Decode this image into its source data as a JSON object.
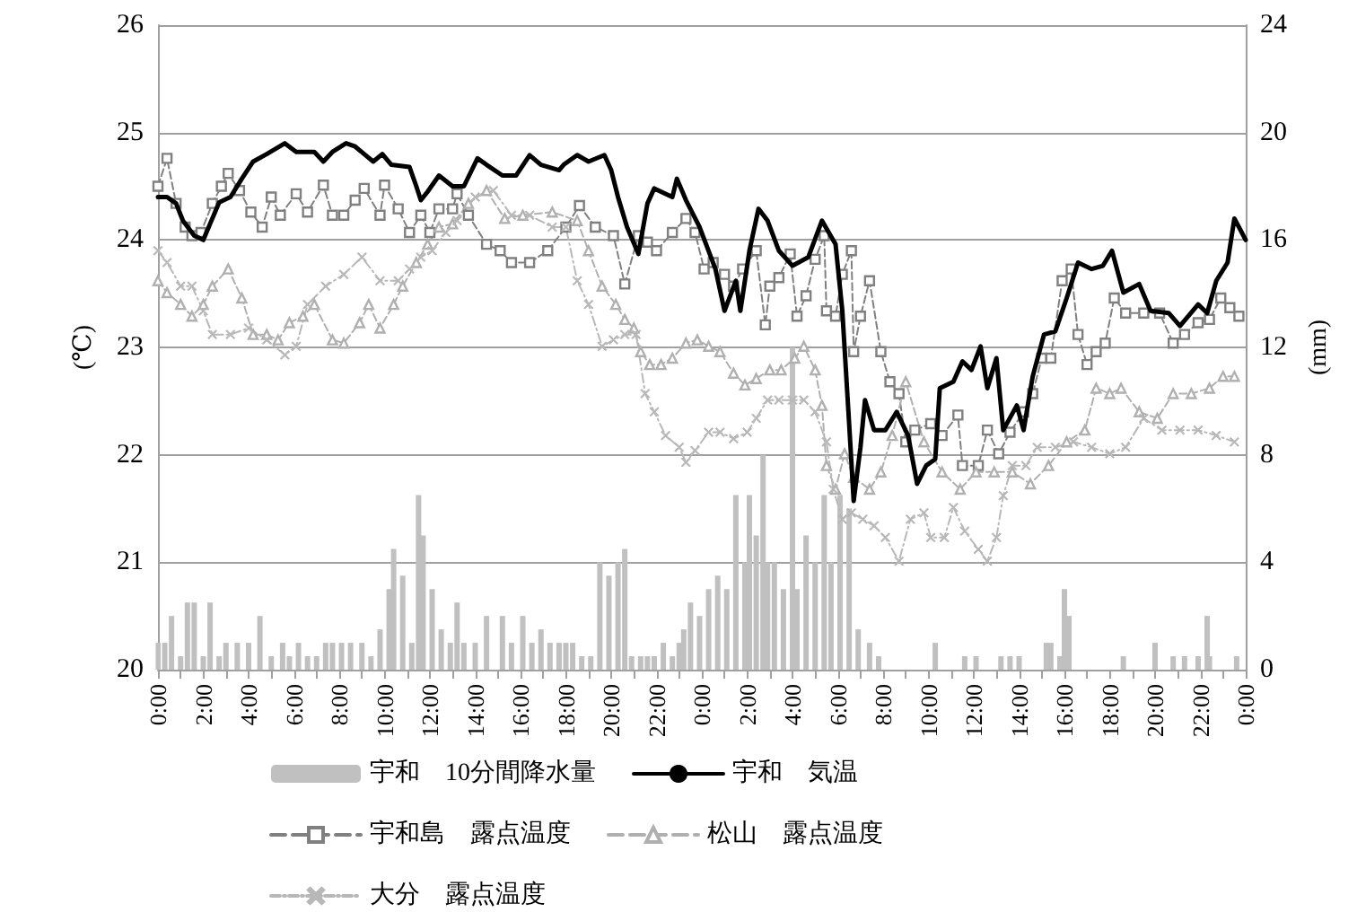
{
  "chart_data": {
    "type": "line",
    "ylabel": "(℃)",
    "y2label": "(mm)",
    "xlim": [
      "2000-01-01T00:00",
      "2000-01-03T00:00"
    ],
    "xticks": [
      {
        "value": "2000-01-01T00:00",
        "label": "0:00"
      },
      {
        "value": "2000-01-01T01:00",
        "label": null
      },
      {
        "value": "2000-01-01T02:00",
        "label": "2:00"
      },
      {
        "value": "2000-01-01T03:00",
        "label": null
      },
      {
        "value": "2000-01-01T04:00",
        "label": "4:00"
      },
      {
        "value": "2000-01-01T05:00",
        "label": null
      },
      {
        "value": "2000-01-01T06:00",
        "label": "6:00"
      },
      {
        "value": "2000-01-01T07:00",
        "label": null
      },
      {
        "value": "2000-01-01T08:00",
        "label": "8:00"
      },
      {
        "value": "2000-01-01T09:00",
        "label": null
      },
      {
        "value": "2000-01-01T10:00",
        "label": "10:00"
      },
      {
        "value": "2000-01-01T11:00",
        "label": null
      },
      {
        "value": "2000-01-01T12:00",
        "label": "12:00"
      },
      {
        "value": "2000-01-01T13:00",
        "label": null
      },
      {
        "value": "2000-01-01T14:00",
        "label": "14:00"
      },
      {
        "value": "2000-01-01T15:00",
        "label": null
      },
      {
        "value": "2000-01-01T16:00",
        "label": "16:00"
      },
      {
        "value": "2000-01-01T17:00",
        "label": null
      },
      {
        "value": "2000-01-01T18:00",
        "label": "18:00"
      },
      {
        "value": "2000-01-01T19:00",
        "label": null
      },
      {
        "value": "2000-01-01T20:00",
        "label": "20:00"
      },
      {
        "value": "2000-01-01T21:00",
        "label": null
      },
      {
        "value": "2000-01-01T22:00",
        "label": "22:00"
      },
      {
        "value": "2000-01-01T23:00",
        "label": null
      },
      {
        "value": "2000-01-02T00:00",
        "label": "0:00"
      },
      {
        "value": "2000-01-02T01:00",
        "label": null
      },
      {
        "value": "2000-01-02T02:00",
        "label": "2:00"
      },
      {
        "value": "2000-01-02T03:00",
        "label": null
      },
      {
        "value": "2000-01-02T04:00",
        "label": "4:00"
      },
      {
        "value": "2000-01-02T05:00",
        "label": null
      },
      {
        "value": "2000-01-02T06:00",
        "label": "6:00"
      },
      {
        "value": "2000-01-02T07:00",
        "label": null
      },
      {
        "value": "2000-01-02T08:00",
        "label": "8:00"
      },
      {
        "value": "2000-01-02T09:00",
        "label": null
      },
      {
        "value": "2000-01-02T10:00",
        "label": "10:00"
      },
      {
        "value": "2000-01-02T11:00",
        "label": null
      },
      {
        "value": "2000-01-02T12:00",
        "label": "12:00"
      },
      {
        "value": "2000-01-02T13:00",
        "label": null
      },
      {
        "value": "2000-01-02T14:00",
        "label": "14:00"
      },
      {
        "value": "2000-01-02T15:00",
        "label": null
      },
      {
        "value": "2000-01-02T16:00",
        "label": "16:00"
      },
      {
        "value": "2000-01-02T17:00",
        "label": null
      },
      {
        "value": "2000-01-02T18:00",
        "label": "18:00"
      },
      {
        "value": "2000-01-02T19:00",
        "label": null
      },
      {
        "value": "2000-01-02T20:00",
        "label": "20:00"
      },
      {
        "value": "2000-01-02T21:00",
        "label": null
      },
      {
        "value": "2000-01-02T22:00",
        "label": "22:00"
      },
      {
        "value": "2000-01-02T23:00",
        "label": null
      },
      {
        "value": "2000-01-03T00:00",
        "label": "0:00"
      }
    ],
    "ylim": [
      20,
      26
    ],
    "yticks": [
      20,
      21,
      22,
      23,
      24,
      25,
      26
    ],
    "y2lim": [
      0,
      24
    ],
    "y2ticks": [
      0,
      4,
      8,
      12,
      16,
      20,
      24
    ],
    "grid": "y",
    "legend": "bottom",
    "series": [
      {
        "name": "宇和　10分間降水量",
        "type": "bar",
        "axis": "y2",
        "color": "#c0c0c0",
        "x": [
          "2000-01-01T00:00",
          "2000-01-01T00:18",
          "2000-01-01T00:36",
          "2000-01-01T01:00",
          "2000-01-01T01:18",
          "2000-01-01T01:36",
          "2000-01-01T02:00",
          "2000-01-01T02:18",
          "2000-01-01T02:42",
          "2000-01-01T03:00",
          "2000-01-01T03:30",
          "2000-01-01T04:00",
          "2000-01-01T04:30",
          "2000-01-01T05:00",
          "2000-01-01T05:30",
          "2000-01-01T05:48",
          "2000-01-01T06:12",
          "2000-01-01T06:36",
          "2000-01-01T07:00",
          "2000-01-01T07:24",
          "2000-01-01T07:42",
          "2000-01-01T08:06",
          "2000-01-01T08:30",
          "2000-01-01T09:00",
          "2000-01-01T09:24",
          "2000-01-01T09:48",
          "2000-01-01T10:12",
          "2000-01-01T10:24",
          "2000-01-01T10:48",
          "2000-01-01T11:12",
          "2000-01-01T11:30",
          "2000-01-01T11:42",
          "2000-01-01T12:06",
          "2000-01-01T12:30",
          "2000-01-01T12:54",
          "2000-01-01T13:12",
          "2000-01-01T13:30",
          "2000-01-01T14:00",
          "2000-01-01T14:30",
          "2000-01-01T15:12",
          "2000-01-01T15:36",
          "2000-01-01T16:06",
          "2000-01-01T16:30",
          "2000-01-01T16:54",
          "2000-01-01T17:18",
          "2000-01-01T17:42",
          "2000-01-01T18:00",
          "2000-01-01T18:18",
          "2000-01-01T18:42",
          "2000-01-01T19:06",
          "2000-01-01T19:30",
          "2000-01-01T19:54",
          "2000-01-01T20:18",
          "2000-01-01T20:36",
          "2000-01-01T20:54",
          "2000-01-01T21:18",
          "2000-01-01T21:36",
          "2000-01-01T21:54",
          "2000-01-01T22:18",
          "2000-01-01T22:42",
          "2000-01-01T23:00",
          "2000-01-01T23:12",
          "2000-01-01T23:30",
          "2000-01-01T23:54",
          "2000-01-02T00:18",
          "2000-01-02T00:42",
          "2000-01-02T01:06",
          "2000-01-02T01:30",
          "2000-01-02T01:54",
          "2000-01-02T02:06",
          "2000-01-02T02:24",
          "2000-01-02T02:42",
          "2000-01-02T02:54",
          "2000-01-02T03:12",
          "2000-01-02T03:36",
          "2000-01-02T04:00",
          "2000-01-02T04:12",
          "2000-01-02T04:36",
          "2000-01-02T05:00",
          "2000-01-02T05:24",
          "2000-01-02T05:42",
          "2000-01-02T06:06",
          "2000-01-02T06:30",
          "2000-01-02T06:54",
          "2000-01-02T07:24",
          "2000-01-02T07:48",
          "2000-01-02T10:18",
          "2000-01-02T11:36",
          "2000-01-02T12:06",
          "2000-01-02T13:12",
          "2000-01-02T13:36",
          "2000-01-02T14:00",
          "2000-01-02T15:12",
          "2000-01-02T15:24",
          "2000-01-02T15:48",
          "2000-01-02T16:00",
          "2000-01-02T16:12",
          "2000-01-02T18:36",
          "2000-01-02T20:00",
          "2000-01-02T20:48",
          "2000-01-02T21:18",
          "2000-01-02T21:54",
          "2000-01-02T22:18",
          "2000-01-02T22:24",
          "2000-01-02T23:36"
        ],
        "values": [
          1,
          1,
          2,
          0.5,
          2.5,
          2.5,
          0.5,
          2.5,
          0.5,
          1,
          1,
          1,
          2,
          0.5,
          1,
          0.5,
          1,
          0.5,
          0.5,
          1,
          1,
          1,
          1,
          1,
          0.5,
          1.5,
          3,
          4.5,
          3.5,
          1,
          6.5,
          5,
          3,
          1.5,
          1,
          2.5,
          1,
          1,
          2,
          2,
          1,
          2,
          1,
          1.5,
          1,
          1,
          1,
          1,
          0.5,
          0.5,
          4,
          3.5,
          4,
          4.5,
          0.5,
          0.5,
          0.5,
          0.5,
          1,
          0.5,
          1,
          1.5,
          2.5,
          2,
          3,
          3.5,
          3,
          6.5,
          4,
          6.5,
          5,
          8,
          4,
          4,
          3,
          12,
          3,
          5,
          4,
          6.5,
          4,
          6.5,
          6,
          1.5,
          1,
          0.5,
          1,
          0.5,
          0.5,
          0.5,
          0.5,
          0.5,
          1,
          1,
          0.5,
          3,
          2,
          0.5,
          1,
          0.5,
          0.5,
          0.5,
          2,
          0.5,
          0.5
        ]
      },
      {
        "name": "宇和　気温",
        "color": "#000000",
        "marker": "none",
        "line_style": "solid",
        "x": [
          "2000-01-01T00:00",
          "2000-01-01T00:24",
          "2000-01-01T00:48",
          "2000-01-01T01:06",
          "2000-01-01T01:36",
          "2000-01-01T02:00",
          "2000-01-01T02:18",
          "2000-01-01T02:42",
          "2000-01-01T03:12",
          "2000-01-01T03:42",
          "2000-01-01T04:12",
          "2000-01-01T04:48",
          "2000-01-01T05:36",
          "2000-01-01T06:06",
          "2000-01-01T06:54",
          "2000-01-01T07:18",
          "2000-01-01T07:42",
          "2000-01-01T08:18",
          "2000-01-01T08:42",
          "2000-01-01T09:06",
          "2000-01-01T09:30",
          "2000-01-01T09:54",
          "2000-01-01T10:18",
          "2000-01-01T11:06",
          "2000-01-01T11:24",
          "2000-01-01T11:36",
          "2000-01-01T11:54",
          "2000-01-01T12:24",
          "2000-01-01T13:00",
          "2000-01-01T13:30",
          "2000-01-01T14:06",
          "2000-01-01T14:30",
          "2000-01-01T15:12",
          "2000-01-01T15:48",
          "2000-01-01T16:24",
          "2000-01-01T16:54",
          "2000-01-01T17:42",
          "2000-01-01T17:54",
          "2000-01-01T18:30",
          "2000-01-01T19:00",
          "2000-01-01T19:42",
          "2000-01-01T20:00",
          "2000-01-01T20:18",
          "2000-01-01T20:42",
          "2000-01-01T21:12",
          "2000-01-01T21:36",
          "2000-01-01T21:54",
          "2000-01-01T22:42",
          "2000-01-01T22:54",
          "2000-01-01T23:18",
          "2000-01-01T23:54",
          "2000-01-02T00:36",
          "2000-01-02T01:00",
          "2000-01-02T01:30",
          "2000-01-02T01:42",
          "2000-01-02T02:06",
          "2000-01-02T02:30",
          "2000-01-02T02:54",
          "2000-01-02T03:24",
          "2000-01-02T04:00",
          "2000-01-02T04:42",
          "2000-01-02T05:18",
          "2000-01-02T05:54",
          "2000-01-02T06:12",
          "2000-01-02T06:30",
          "2000-01-02T06:42",
          "2000-01-02T07:00",
          "2000-01-02T07:12",
          "2000-01-02T07:36",
          "2000-01-02T08:06",
          "2000-01-02T08:36",
          "2000-01-02T09:06",
          "2000-01-02T09:30",
          "2000-01-02T09:54",
          "2000-01-02T10:18",
          "2000-01-02T10:30",
          "2000-01-02T11:06",
          "2000-01-02T11:30",
          "2000-01-02T11:54",
          "2000-01-02T12:18",
          "2000-01-02T12:36",
          "2000-01-02T13:00",
          "2000-01-02T13:18",
          "2000-01-02T13:54",
          "2000-01-02T14:12",
          "2000-01-02T14:36",
          "2000-01-02T15:06",
          "2000-01-02T15:36",
          "2000-01-02T16:06",
          "2000-01-02T16:36",
          "2000-01-02T17:12",
          "2000-01-02T17:42",
          "2000-01-02T18:06",
          "2000-01-02T18:36",
          "2000-01-02T19:18",
          "2000-01-02T19:48",
          "2000-01-02T20:36",
          "2000-01-02T21:06",
          "2000-01-02T21:54",
          "2000-01-02T22:18",
          "2000-01-02T22:42",
          "2000-01-02T23:12",
          "2000-01-02T23:30",
          "2000-01-03T00:00"
        ],
        "values": [
          24.4,
          24.4,
          24.34,
          24.18,
          24.04,
          24.0,
          24.15,
          24.35,
          24.4,
          24.57,
          24.73,
          24.8,
          24.9,
          24.82,
          24.82,
          24.73,
          24.82,
          24.9,
          24.87,
          24.8,
          24.73,
          24.8,
          24.7,
          24.68,
          24.5,
          24.37,
          24.45,
          24.6,
          24.5,
          24.5,
          24.76,
          24.7,
          24.6,
          24.6,
          24.79,
          24.7,
          24.65,
          24.7,
          24.79,
          24.73,
          24.79,
          24.65,
          24.4,
          24.12,
          23.87,
          24.34,
          24.48,
          24.4,
          24.57,
          24.37,
          24.12,
          23.73,
          23.34,
          23.62,
          23.34,
          23.9,
          24.29,
          24.18,
          23.9,
          23.76,
          23.84,
          24.18,
          23.96,
          23.34,
          22.29,
          21.57,
          22.07,
          22.51,
          22.23,
          22.23,
          22.4,
          22.18,
          21.73,
          21.9,
          21.96,
          22.62,
          22.68,
          22.87,
          22.79,
          23.01,
          22.62,
          22.9,
          22.23,
          22.46,
          22.23,
          22.73,
          23.12,
          23.15,
          23.46,
          23.79,
          23.73,
          23.76,
          23.9,
          23.51,
          23.59,
          23.34,
          23.32,
          23.2,
          23.4,
          23.32,
          23.62,
          23.79,
          24.2,
          24.0
        ]
      },
      {
        "name": "宇和島　露点温度",
        "color": "#808080",
        "marker": "square",
        "line_style": "dashed",
        "x": [
          "2000-01-01T00:00",
          "2000-01-01T00:24",
          "2000-01-01T00:48",
          "2000-01-01T01:12",
          "2000-01-01T01:30",
          "2000-01-01T01:54",
          "2000-01-01T02:24",
          "2000-01-01T02:48",
          "2000-01-01T03:06",
          "2000-01-01T03:36",
          "2000-01-01T04:06",
          "2000-01-01T04:36",
          "2000-01-01T05:00",
          "2000-01-01T05:24",
          "2000-01-01T06:06",
          "2000-01-01T06:36",
          "2000-01-01T07:18",
          "2000-01-01T07:42",
          "2000-01-01T08:12",
          "2000-01-01T08:42",
          "2000-01-01T09:06",
          "2000-01-01T09:48",
          "2000-01-01T10:00",
          "2000-01-01T10:36",
          "2000-01-01T11:06",
          "2000-01-01T11:36",
          "2000-01-01T12:00",
          "2000-01-01T12:24",
          "2000-01-01T13:00",
          "2000-01-01T13:12",
          "2000-01-01T13:42",
          "2000-01-01T14:30",
          "2000-01-01T15:06",
          "2000-01-01T15:36",
          "2000-01-01T16:24",
          "2000-01-01T17:12",
          "2000-01-01T18:00",
          "2000-01-01T18:36",
          "2000-01-01T19:18",
          "2000-01-01T20:06",
          "2000-01-01T20:36",
          "2000-01-01T21:12",
          "2000-01-01T21:36",
          "2000-01-01T22:00",
          "2000-01-01T22:42",
          "2000-01-01T23:18",
          "2000-01-01T23:42",
          "2000-01-02T00:06",
          "2000-01-02T00:30",
          "2000-01-02T01:00",
          "2000-01-02T01:24",
          "2000-01-02T01:48",
          "2000-01-02T02:24",
          "2000-01-02T02:48",
          "2000-01-02T03:00",
          "2000-01-02T03:24",
          "2000-01-02T03:54",
          "2000-01-02T04:12",
          "2000-01-02T04:36",
          "2000-01-02T05:00",
          "2000-01-02T05:24",
          "2000-01-02T05:30",
          "2000-01-02T05:54",
          "2000-01-02T06:12",
          "2000-01-02T06:36",
          "2000-01-02T06:42",
          "2000-01-02T07:00",
          "2000-01-02T07:24",
          "2000-01-02T07:54",
          "2000-01-02T08:18",
          "2000-01-02T08:42",
          "2000-01-02T09:00",
          "2000-01-02T09:24",
          "2000-01-02T10:06",
          "2000-01-02T10:36",
          "2000-01-02T11:18",
          "2000-01-02T11:30",
          "2000-01-02T12:12",
          "2000-01-02T12:36",
          "2000-01-02T13:06",
          "2000-01-02T13:36",
          "2000-01-02T14:12",
          "2000-01-02T14:36",
          "2000-01-02T15:00",
          "2000-01-02T15:24",
          "2000-01-02T15:54",
          "2000-01-02T16:18",
          "2000-01-02T16:36",
          "2000-01-02T17:00",
          "2000-01-02T17:24",
          "2000-01-02T17:48",
          "2000-01-02T18:12",
          "2000-01-02T18:42",
          "2000-01-02T19:30",
          "2000-01-02T20:12",
          "2000-01-02T20:48",
          "2000-01-02T21:18",
          "2000-01-02T21:54",
          "2000-01-02T22:24",
          "2000-01-02T22:54",
          "2000-01-02T23:18",
          "2000-01-02T23:42"
        ],
        "values": [
          24.5,
          24.76,
          24.34,
          24.12,
          24.04,
          24.07,
          24.34,
          24.5,
          24.62,
          24.46,
          24.26,
          24.12,
          24.4,
          24.23,
          24.43,
          24.26,
          24.51,
          24.23,
          24.23,
          24.37,
          24.48,
          24.23,
          24.51,
          24.29,
          24.07,
          24.23,
          24.07,
          24.29,
          24.29,
          24.43,
          24.23,
          23.96,
          23.9,
          23.79,
          23.79,
          23.9,
          24.12,
          24.32,
          24.12,
          24.04,
          23.59,
          24.04,
          23.98,
          23.9,
          24.07,
          24.2,
          24.07,
          23.73,
          23.79,
          23.68,
          23.57,
          23.73,
          23.9,
          23.21,
          23.57,
          23.65,
          23.87,
          23.29,
          23.48,
          23.82,
          24.04,
          23.34,
          23.29,
          23.68,
          23.9,
          22.96,
          23.29,
          23.62,
          22.96,
          22.68,
          22.57,
          22.12,
          22.23,
          22.29,
          22.18,
          22.37,
          21.9,
          21.9,
          22.23,
          22.01,
          22.21,
          22.4,
          22.57,
          22.9,
          22.9,
          23.62,
          23.73,
          23.12,
          22.84,
          22.96,
          23.04,
          23.46,
          23.32,
          23.32,
          23.32,
          23.04,
          23.12,
          23.23,
          23.26,
          23.46,
          23.37,
          23.29
        ]
      },
      {
        "name": "松山　露点温度",
        "color": "#b0b0b0",
        "marker": "triangle",
        "line_style": "dashed",
        "x": [
          "2000-01-01T00:00",
          "2000-01-01T00:24",
          "2000-01-01T01:00",
          "2000-01-01T01:30",
          "2000-01-01T02:00",
          "2000-01-01T02:24",
          "2000-01-01T03:06",
          "2000-01-01T03:42",
          "2000-01-01T04:12",
          "2000-01-01T04:48",
          "2000-01-01T05:18",
          "2000-01-01T05:48",
          "2000-01-01T06:24",
          "2000-01-01T06:54",
          "2000-01-01T07:42",
          "2000-01-01T08:12",
          "2000-01-01T08:54",
          "2000-01-01T09:18",
          "2000-01-01T09:48",
          "2000-01-01T10:24",
          "2000-01-01T10:48",
          "2000-01-01T11:24",
          "2000-01-01T11:54",
          "2000-01-01T12:24",
          "2000-01-01T13:00",
          "2000-01-01T13:42",
          "2000-01-01T14:30",
          "2000-01-01T15:18",
          "2000-01-01T16:06",
          "2000-01-01T17:24",
          "2000-01-01T18:30",
          "2000-01-01T19:00",
          "2000-01-01T19:36",
          "2000-01-01T20:12",
          "2000-01-01T20:36",
          "2000-01-01T21:00",
          "2000-01-01T21:18",
          "2000-01-01T21:42",
          "2000-01-01T22:12",
          "2000-01-01T22:42",
          "2000-01-01T23:18",
          "2000-01-01T23:48",
          "2000-01-02T00:18",
          "2000-01-02T00:48",
          "2000-01-02T01:24",
          "2000-01-02T01:54",
          "2000-01-02T02:24",
          "2000-01-02T03:00",
          "2000-01-02T03:30",
          "2000-01-02T04:06",
          "2000-01-02T04:30",
          "2000-01-02T05:00",
          "2000-01-02T05:18",
          "2000-01-02T05:30",
          "2000-01-02T05:54",
          "2000-01-02T06:18",
          "2000-01-02T06:42",
          "2000-01-02T07:24",
          "2000-01-02T07:54",
          "2000-01-02T08:24",
          "2000-01-02T09:00",
          "2000-01-02T09:48",
          "2000-01-02T10:36",
          "2000-01-02T11:24",
          "2000-01-02T12:06",
          "2000-01-02T12:54",
          "2000-01-02T13:42",
          "2000-01-02T14:30",
          "2000-01-02T15:18",
          "2000-01-02T16:06",
          "2000-01-02T16:54",
          "2000-01-02T17:24",
          "2000-01-02T18:00",
          "2000-01-02T18:30",
          "2000-01-02T19:18",
          "2000-01-02T20:06",
          "2000-01-02T20:48",
          "2000-01-02T21:36",
          "2000-01-02T22:24",
          "2000-01-02T23:00",
          "2000-01-02T23:30"
        ],
        "values": [
          23.62,
          23.51,
          23.4,
          23.29,
          23.4,
          23.57,
          23.73,
          23.46,
          23.12,
          23.12,
          23.07,
          23.23,
          23.29,
          23.4,
          23.07,
          23.04,
          23.23,
          23.4,
          23.18,
          23.4,
          23.57,
          23.79,
          23.96,
          24.12,
          24.15,
          24.34,
          24.46,
          24.2,
          24.23,
          24.26,
          24.18,
          23.9,
          23.57,
          23.4,
          23.26,
          23.18,
          22.96,
          22.84,
          22.84,
          22.9,
          23.04,
          23.07,
          23.01,
          22.96,
          22.76,
          22.65,
          22.71,
          22.79,
          22.79,
          22.9,
          23.01,
          22.79,
          22.46,
          21.9,
          21.68,
          22.01,
          21.79,
          21.68,
          21.84,
          22.18,
          22.68,
          22.12,
          21.84,
          21.68,
          21.84,
          21.84,
          21.84,
          21.73,
          21.9,
          22.12,
          22.23,
          22.62,
          22.57,
          22.62,
          22.4,
          22.34,
          22.57,
          22.57,
          22.62,
          22.73,
          22.73
        ]
      },
      {
        "name": "大分　露点温度",
        "color": "#b8b8b8",
        "marker": "cross",
        "line_style": "dotted",
        "x": [
          "2000-01-01T00:00",
          "2000-01-01T00:24",
          "2000-01-01T01:00",
          "2000-01-01T01:30",
          "2000-01-01T02:00",
          "2000-01-01T02:24",
          "2000-01-01T03:12",
          "2000-01-01T04:00",
          "2000-01-01T04:48",
          "2000-01-01T05:36",
          "2000-01-01T06:06",
          "2000-01-01T06:36",
          "2000-01-01T07:24",
          "2000-01-01T08:12",
          "2000-01-01T09:00",
          "2000-01-01T09:48",
          "2000-01-01T10:36",
          "2000-01-01T11:06",
          "2000-01-01T11:36",
          "2000-01-01T12:06",
          "2000-01-01T12:42",
          "2000-01-01T13:12",
          "2000-01-01T14:00",
          "2000-01-01T14:48",
          "2000-01-01T15:36",
          "2000-01-01T16:24",
          "2000-01-01T17:24",
          "2000-01-01T18:00",
          "2000-01-01T18:30",
          "2000-01-01T19:00",
          "2000-01-01T19:36",
          "2000-01-01T20:06",
          "2000-01-01T20:36",
          "2000-01-01T21:06",
          "2000-01-01T21:30",
          "2000-01-01T21:54",
          "2000-01-01T22:24",
          "2000-01-01T23:00",
          "2000-01-01T23:18",
          "2000-01-01T23:42",
          "2000-01-02T00:18",
          "2000-01-02T00:48",
          "2000-01-02T01:24",
          "2000-01-02T02:00",
          "2000-01-02T02:24",
          "2000-01-02T02:54",
          "2000-01-02T03:24",
          "2000-01-02T04:00",
          "2000-01-02T04:30",
          "2000-01-02T05:00",
          "2000-01-02T05:30",
          "2000-01-02T05:48",
          "2000-01-02T06:12",
          "2000-01-02T06:36",
          "2000-01-02T07:06",
          "2000-01-02T07:36",
          "2000-01-02T08:06",
          "2000-01-02T08:42",
          "2000-01-02T09:12",
          "2000-01-02T09:48",
          "2000-01-02T10:06",
          "2000-01-02T10:42",
          "2000-01-02T11:06",
          "2000-01-02T11:36",
          "2000-01-02T12:12",
          "2000-01-02T12:36",
          "2000-01-02T13:00",
          "2000-01-02T13:18",
          "2000-01-02T13:42",
          "2000-01-02T14:18",
          "2000-01-02T14:48",
          "2000-01-02T15:36",
          "2000-01-02T16:24",
          "2000-01-02T17:12",
          "2000-01-02T18:00",
          "2000-01-02T18:42",
          "2000-01-02T19:30",
          "2000-01-02T20:18",
          "2000-01-02T21:06",
          "2000-01-02T21:54",
          "2000-01-02T22:42",
          "2000-01-02T23:30"
        ],
        "values": [
          23.9,
          23.79,
          23.57,
          23.57,
          23.34,
          23.12,
          23.12,
          23.18,
          23.07,
          22.93,
          23.01,
          23.4,
          23.57,
          23.68,
          23.84,
          23.62,
          23.62,
          23.73,
          23.84,
          23.9,
          24.07,
          24.18,
          24.4,
          24.46,
          24.23,
          24.23,
          24.12,
          24.12,
          23.62,
          23.4,
          23.01,
          23.07,
          23.12,
          23.12,
          22.57,
          22.4,
          22.18,
          22.07,
          21.93,
          22.04,
          22.21,
          22.21,
          22.15,
          22.21,
          22.34,
          22.51,
          22.51,
          22.51,
          22.51,
          22.4,
          22.12,
          21.68,
          21.4,
          21.46,
          21.4,
          21.34,
          21.23,
          21.01,
          21.4,
          21.46,
          21.23,
          21.23,
          21.51,
          21.29,
          21.12,
          21.01,
          21.23,
          21.62,
          21.9,
          21.9,
          22.07,
          22.07,
          22.12,
          22.07,
          22.01,
          22.07,
          22.34,
          22.23,
          22.23,
          22.23,
          22.18,
          22.12
        ]
      }
    ]
  }
}
